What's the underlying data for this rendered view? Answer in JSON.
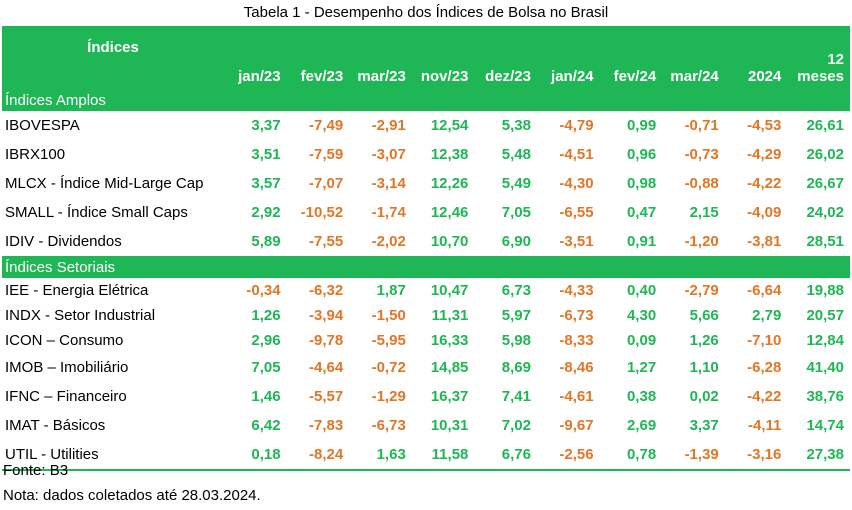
{
  "title": "Tabela 1 - Desempenho dos Índices de Bolsa no Brasil",
  "header": {
    "first": "Índices",
    "columns": [
      "jan/23",
      "fev/23",
      "mar/23",
      "nov/23",
      "dez/23",
      "jan/24",
      "fev/24",
      "mar/24",
      "2024",
      "12 meses"
    ]
  },
  "sections": [
    {
      "label": "Índices Amplos",
      "rows": [
        {
          "name": "IBOVESPA",
          "values": [
            "3,37",
            "-7,49",
            "-2,91",
            "12,54",
            "5,38",
            "-4,79",
            "0,99",
            "-0,71",
            "-4,53",
            "26,61"
          ]
        },
        {
          "name": "IBRX100",
          "values": [
            "3,51",
            "-7,59",
            "-3,07",
            "12,38",
            "5,48",
            "-4,51",
            "0,96",
            "-0,73",
            "-4,29",
            "26,02"
          ]
        },
        {
          "name": "MLCX - Índice Mid-Large Cap",
          "values": [
            "3,57",
            "-7,07",
            "-3,14",
            "12,26",
            "5,49",
            "-4,30",
            "0,98",
            "-0,88",
            "-4,22",
            "26,67"
          ]
        },
        {
          "name": "SMALL - Índice Small Caps",
          "values": [
            "2,92",
            "-10,52",
            "-1,74",
            "12,46",
            "7,05",
            "-6,55",
            "0,47",
            "2,15",
            "-4,09",
            "24,02"
          ]
        },
        {
          "name": "IDIV - Dividendos",
          "values": [
            "5,89",
            "-7,55",
            "-2,02",
            "10,70",
            "6,90",
            "-3,51",
            "0,91",
            "-1,20",
            "-3,81",
            "28,51"
          ]
        }
      ]
    },
    {
      "label": "Índices Setoriais",
      "rows": [
        {
          "name": "IEE - Energia Elétrica",
          "values": [
            "-0,34",
            "-6,32",
            "1,87",
            "10,47",
            "6,73",
            "-4,33",
            "0,40",
            "-2,79",
            "-6,64",
            "19,88"
          ]
        },
        {
          "name": "INDX - Setor Industrial",
          "values": [
            "1,26",
            "-3,94",
            "-1,50",
            "11,31",
            "5,97",
            "-6,73",
            "4,30",
            "5,66",
            "2,79",
            "20,57"
          ]
        },
        {
          "name": "ICON – Consumo",
          "values": [
            "2,96",
            "-9,78",
            "-5,95",
            "16,33",
            "5,98",
            "-8,33",
            "0,09",
            "1,26",
            "-7,10",
            "12,84"
          ]
        },
        {
          "name": "IMOB – Imobiliário",
          "values": [
            "7,05",
            "-4,64",
            "-0,72",
            "14,85",
            "8,69",
            "-8,46",
            "1,27",
            "1,10",
            "-6,28",
            "41,40"
          ]
        },
        {
          "name": "IFNC – Financeiro",
          "values": [
            "1,46",
            "-5,57",
            "-1,29",
            "16,37",
            "7,41",
            "-4,61",
            "0,38",
            "0,02",
            "-4,22",
            "38,76"
          ]
        },
        {
          "name": "IMAT - Básicos",
          "values": [
            "6,42",
            "-7,83",
            "-6,73",
            "10,31",
            "7,02",
            "-9,67",
            "2,69",
            "3,37",
            "-4,11",
            "14,74"
          ]
        },
        {
          "name": "UTIL - Utilities",
          "values": [
            "0,18",
            "-8,24",
            "1,63",
            "11,58",
            "6,76",
            "-2,56",
            "0,78",
            "-1,39",
            "-3,16",
            "27,38"
          ]
        }
      ]
    }
  ],
  "footer": {
    "source": "Fonte: B3",
    "note": "Nota: dados coletados até 28.03.2024."
  },
  "colors": {
    "accent": "#1fb655",
    "positive": "#1fb655",
    "negative": "#e07626"
  }
}
